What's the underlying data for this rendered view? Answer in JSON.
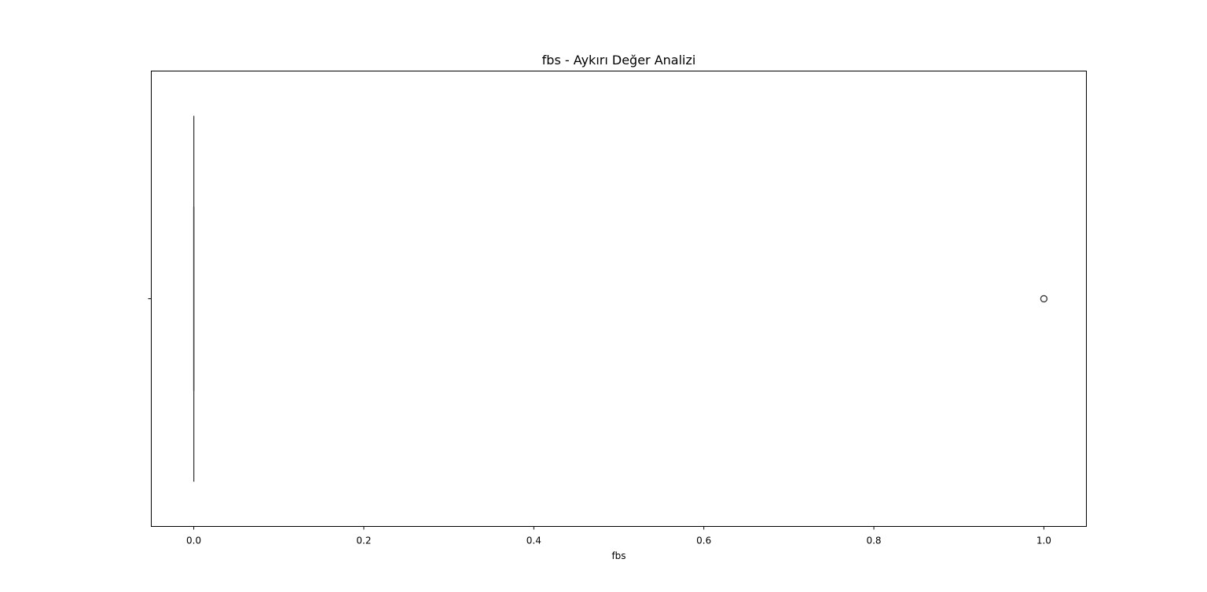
{
  "chart_data": {
    "type": "boxplot",
    "title": "fbs - Aykırı Değer Analizi",
    "xlabel": "fbs",
    "ylabel": "",
    "orientation": "horizontal",
    "xlim": [
      -0.05,
      1.05
    ],
    "x_ticks": [
      0.0,
      0.2,
      0.4,
      0.6,
      0.8,
      1.0
    ],
    "x_tick_labels": [
      "0.0",
      "0.2",
      "0.4",
      "0.6",
      "0.8",
      "1.0"
    ],
    "grid": false,
    "series": [
      {
        "q1": 0.0,
        "median": 0.0,
        "q3": 0.0,
        "whisker_low": 0.0,
        "whisker_high": 0.0,
        "outliers": [
          1.0
        ]
      }
    ],
    "colors": {
      "box_line": "#3f3f3f",
      "outlier": "#3f3f3f",
      "axis": "#000000"
    }
  }
}
